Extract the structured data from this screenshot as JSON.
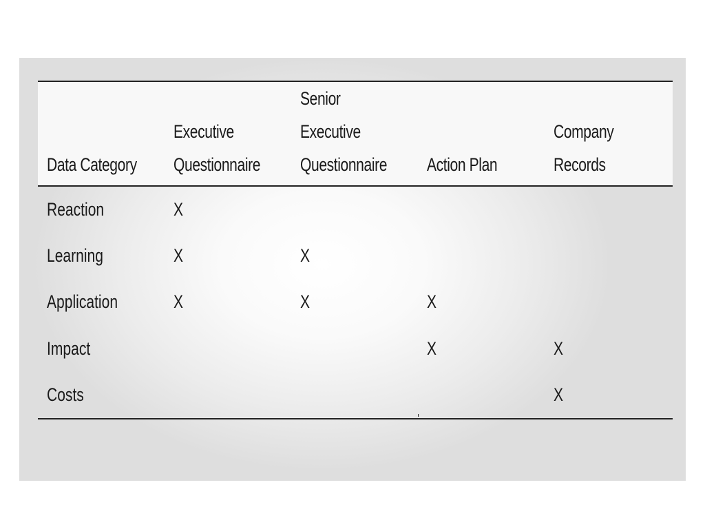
{
  "table": {
    "headers": [
      "Data Category",
      "Executive\nQuestionnaire",
      "Senior\nExecutive\nQuestionnaire",
      "Action Plan",
      "Company\nRecords"
    ],
    "rows": [
      [
        "Reaction",
        "X",
        "",
        "",
        ""
      ],
      [
        "Learning",
        "X",
        "X",
        "",
        ""
      ],
      [
        "Application",
        "X",
        "X",
        "X",
        ""
      ],
      [
        "Impact",
        "",
        "",
        "X",
        "X"
      ],
      [
        "Costs",
        "",
        "",
        "",
        "X"
      ]
    ]
  }
}
